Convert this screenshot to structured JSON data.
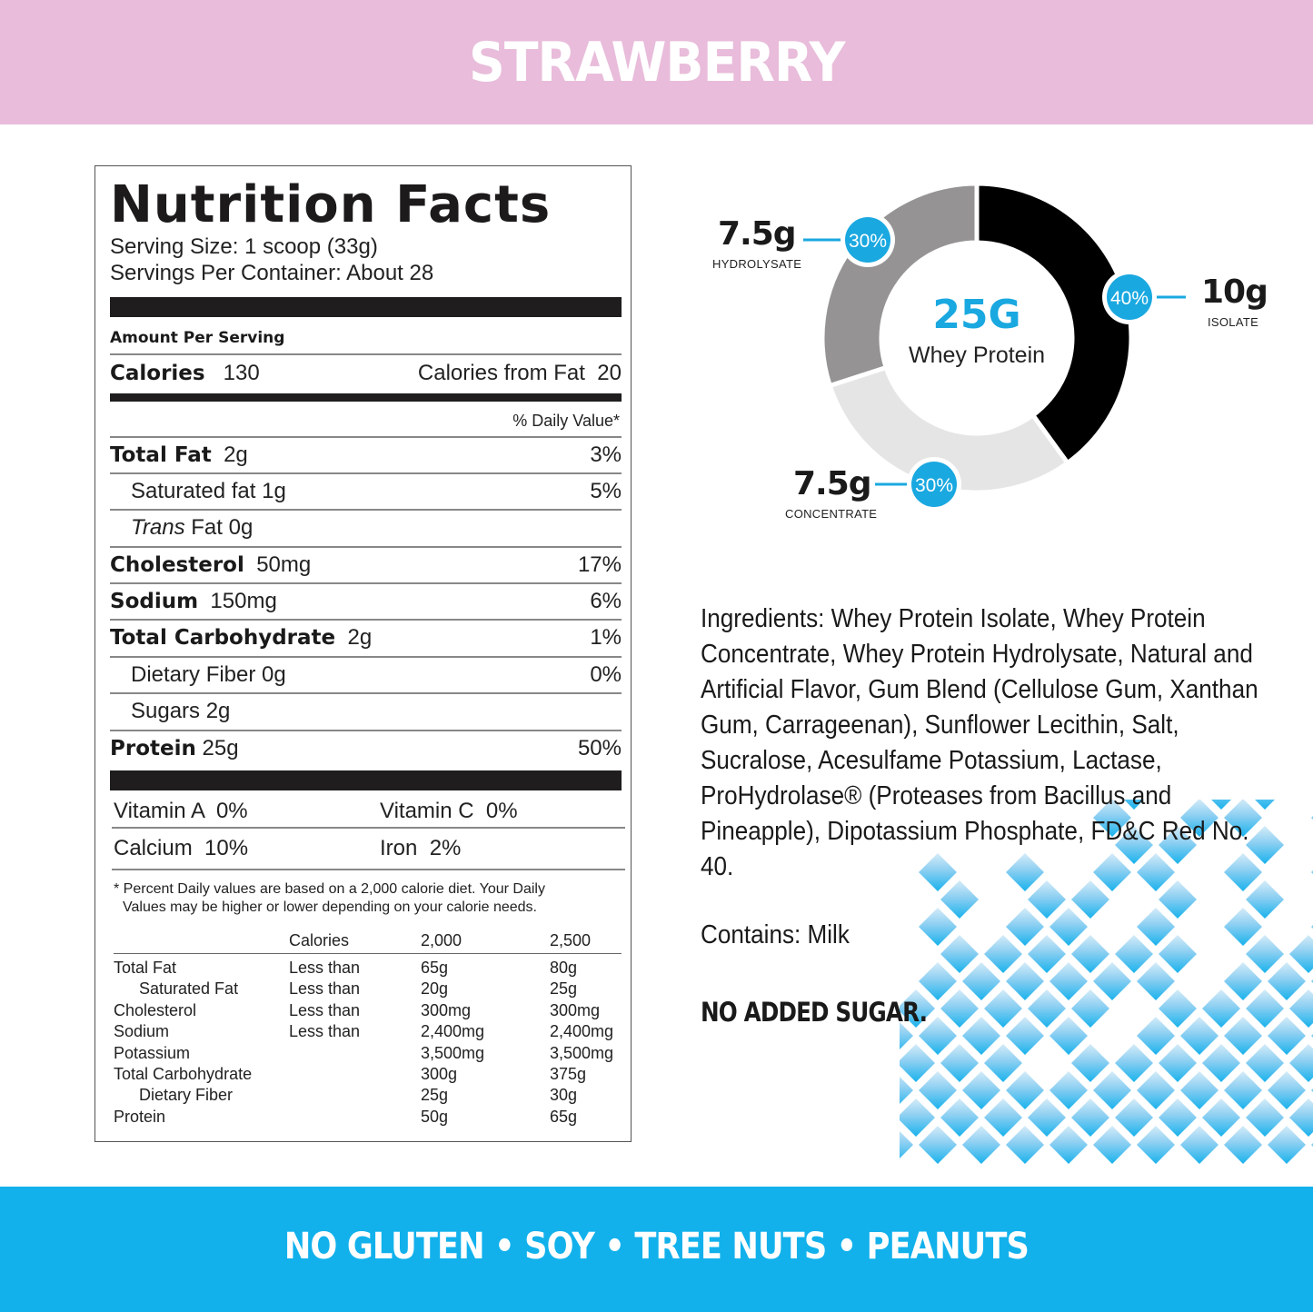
{
  "header": {
    "flavor": "STRAWBERRY",
    "bg_color": "#e8bcda"
  },
  "nutrition_facts": {
    "title": "Nutrition Facts",
    "serving_size": "Serving Size: 1 scoop (33g)",
    "servings_per_container": "Servings Per Container: About 28",
    "amount_per_serving": "Amount Per Serving",
    "calories_label": "Calories",
    "calories_value": "130",
    "calories_from_fat_label": "Calories from Fat",
    "calories_from_fat_value": "20",
    "daily_value_header": "% Daily Value*",
    "rows": [
      {
        "name": "Total Fat",
        "amount": "2g",
        "dv": "3%",
        "bold": true,
        "indent": false
      },
      {
        "name": "Saturated fat",
        "amount": "1g",
        "dv": "5%",
        "bold": false,
        "indent": true
      },
      {
        "name_italic": "Trans",
        "name": "Fat 0g",
        "amount": "",
        "dv": "",
        "bold": false,
        "indent": true
      },
      {
        "name": "Cholesterol",
        "amount": "50mg",
        "dv": "17%",
        "bold": true,
        "indent": false
      },
      {
        "name": "Sodium",
        "amount": "150mg",
        "dv": "6%",
        "bold": true,
        "indent": false
      },
      {
        "name": "Total Carbohydrate",
        "amount": "2g",
        "dv": "1%",
        "bold": true,
        "indent": false
      },
      {
        "name": "Dietary Fiber 0g",
        "amount": "",
        "dv": "0%",
        "bold": false,
        "indent": true
      },
      {
        "name": "Sugars 2g",
        "amount": "",
        "dv": "",
        "bold": false,
        "indent": true
      },
      {
        "name": "Protein",
        "amount": "25g",
        "dv": "50%",
        "bold": true,
        "indent": false
      }
    ],
    "vitamins": [
      {
        "label": "Vitamin A  0%"
      },
      {
        "label": "Vitamin C  0%"
      },
      {
        "label": "Calcium  10%"
      },
      {
        "label": "Iron  2%"
      }
    ],
    "footnote_line1": "* Percent Daily values are based on a 2,000 calorie diet. Your Daily",
    "footnote_line2": "Values may be higher or lower depending on your calorie needs.",
    "reference_table": {
      "headers": [
        "",
        "Calories",
        "2,000",
        "2,500"
      ],
      "rows": [
        [
          "Total Fat",
          "Less than",
          "65g",
          "80g"
        ],
        [
          "  Saturated Fat",
          "Less than",
          "20g",
          "25g"
        ],
        [
          "Cholesterol",
          "Less than",
          "300mg",
          "300mg"
        ],
        [
          "Sodium",
          "Less than",
          "2,400mg",
          "2,400mg"
        ],
        [
          "Potassium",
          "",
          "3,500mg",
          "3,500mg"
        ],
        [
          "Total Carbohydrate",
          "",
          "300g",
          "375g"
        ],
        [
          "  Dietary Fiber",
          "",
          "25g",
          "30g"
        ],
        [
          "Protein",
          "",
          "50g",
          "65g"
        ]
      ]
    }
  },
  "protein_breakdown": {
    "center_value": "25G",
    "center_label": "Whey Protein",
    "segments": [
      {
        "name": "ISOLATE",
        "grams": "10g",
        "percent": "40%",
        "color": "#000000"
      },
      {
        "name": "CONCENTRATE",
        "grams": "7.5g",
        "percent": "30%",
        "color": "#e6e5e6"
      },
      {
        "name": "HYDROLYSATE",
        "grams": "7.5g",
        "percent": "30%",
        "color": "#959394"
      }
    ],
    "badge_color": "#1aa8e0"
  },
  "chart_data": {
    "type": "pie",
    "title": "25G Whey Protein",
    "categories": [
      "Isolate",
      "Concentrate",
      "Hydrolysate"
    ],
    "values": [
      10,
      7.5,
      7.5
    ],
    "percent": [
      40,
      30,
      30
    ],
    "unit": "g",
    "donut": true
  },
  "ingredients": {
    "text": "Ingredients: Whey Protein Isolate, Whey Protein Concentrate, Whey Protein Hydrolysate, Natural and Artificial Flavor, Gum Blend (Cellulose Gum, Xanthan Gum, Carrageenan), Sunflower Lecithin, Salt, Sucralose, Acesulfame Potassium, Lactase, ProHydrolase® (Proteases from Bacillus and Pineapple), Dipotassium Phosphate, FD&C Red No. 40.",
    "contains": "Contains: Milk",
    "claim": "NO ADDED SUGAR."
  },
  "footer": {
    "allergens": "NO GLUTEN • SOY • TREE NUTS • PEANUTS",
    "bg_color": "#12b1ec"
  }
}
